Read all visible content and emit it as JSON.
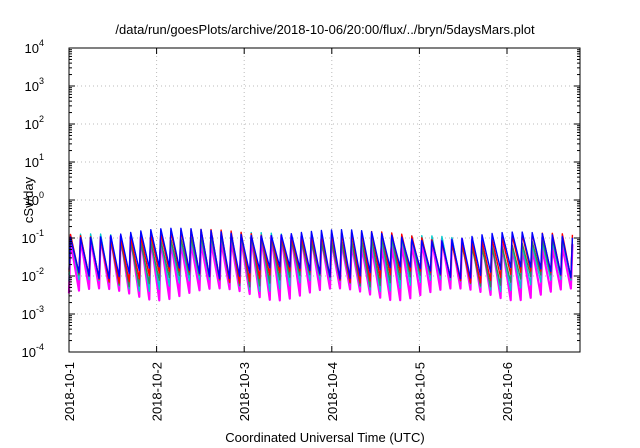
{
  "chart_data": {
    "type": "line",
    "title": "/data/run/goesPlots/archive/2018-10-06/20:00/flux/../bryn/5daysMars.plot",
    "xlabel": "Coordinated Universal Time (UTC)",
    "ylabel": "cSv/day",
    "x_scale": "time",
    "y_scale": "log",
    "xlim": [
      "2018-10-01T00:00",
      "2018-10-06T20:00"
    ],
    "ylim": [
      0.0001,
      10000
    ],
    "x_ticks": [
      "2018-10-1",
      "2018-10-2",
      "2018-10-3",
      "2018-10-4",
      "2018-10-5",
      "2018-10-6"
    ],
    "y_ticks": [
      {
        "base": "10",
        "exp": "-4",
        "value": 0.0001
      },
      {
        "base": "10",
        "exp": "-3",
        "value": 0.001
      },
      {
        "base": "10",
        "exp": "-2",
        "value": 0.01
      },
      {
        "base": "10",
        "exp": "-1",
        "value": 0.1
      },
      {
        "base": "10",
        "exp": "0",
        "value": 1
      },
      {
        "base": "10",
        "exp": "1",
        "value": 10
      },
      {
        "base": "10",
        "exp": "2",
        "value": 100
      },
      {
        "base": "10",
        "exp": "3",
        "value": 1000
      },
      {
        "base": "10",
        "exp": "4",
        "value": 10000
      }
    ],
    "grid": true,
    "legend": "none",
    "oscillation_period_hours": 2.75,
    "series": [
      {
        "color": "#ff00ff",
        "peak": 0.085,
        "trough": 0.0035
      },
      {
        "color": "#00cccc",
        "peak": 0.1,
        "trough": 0.006
      },
      {
        "color": "#2e8b57",
        "peak": 0.09,
        "trough": 0.008
      },
      {
        "color": "#ff0000",
        "peak": 0.12,
        "trough": 0.01
      },
      {
        "color": "#0000ff",
        "peak": 0.13,
        "trough": 0.013
      }
    ]
  }
}
